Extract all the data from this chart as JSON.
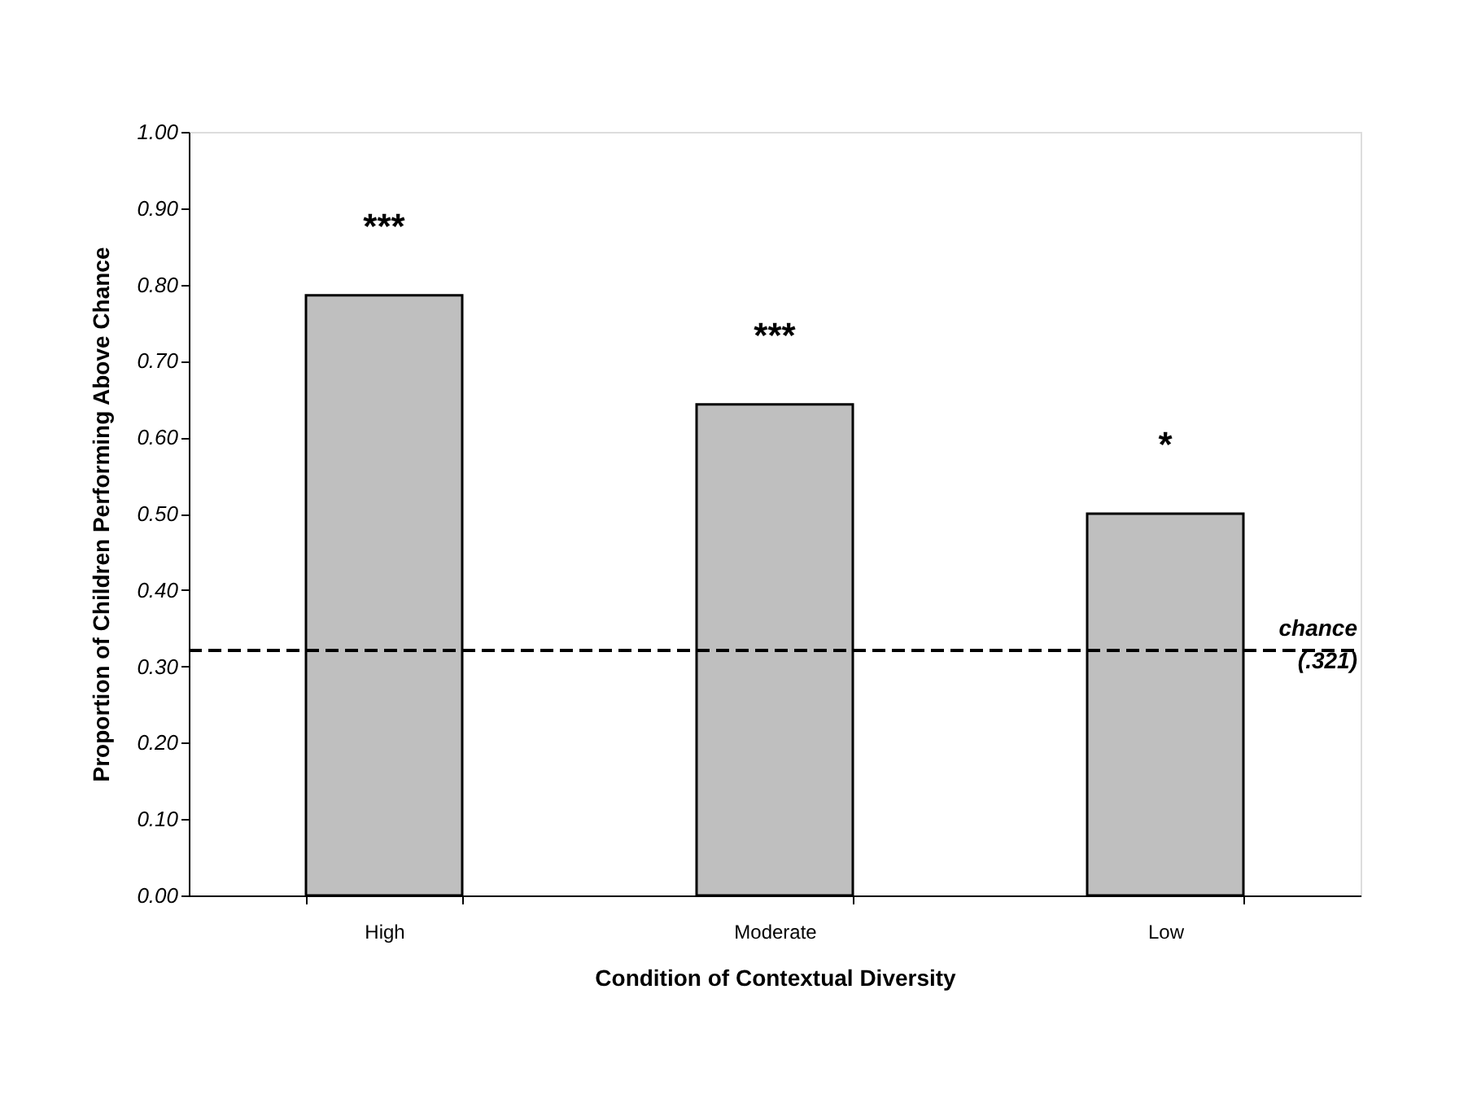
{
  "chart_data": {
    "type": "bar",
    "xlabel": "Condition of Contextual Diversity",
    "ylabel": "Proportion of Children Performing Above Chance",
    "categories": [
      "High",
      "Moderate",
      "Low"
    ],
    "values": [
      0.786,
      0.643,
      0.5
    ],
    "color": "#bfbfbf",
    "ylim": [
      0,
      1
    ],
    "yticks": [
      {
        "value": 0,
        "label": "0.00"
      },
      {
        "value": 0.1,
        "label": "0.10"
      },
      {
        "value": 0.2,
        "label": "0.20"
      },
      {
        "value": 0.3,
        "label": "0.30"
      },
      {
        "value": 0.4,
        "label": "0.40"
      },
      {
        "value": 0.5,
        "label": "0.50"
      },
      {
        "value": 0.6,
        "label": "0.60"
      },
      {
        "value": 0.7,
        "label": "0.70"
      },
      {
        "value": 0.8,
        "label": "0.80"
      },
      {
        "value": 0.9,
        "label": "0.90"
      },
      {
        "value": 1,
        "label": "1.00"
      }
    ],
    "ref_lines": [
      {
        "axis": "y",
        "value": 0.321,
        "label": "chance (.321)",
        "color": "#000000",
        "line_style": "dashed"
      }
    ],
    "annotations": [
      "***",
      "***",
      "*"
    ]
  }
}
